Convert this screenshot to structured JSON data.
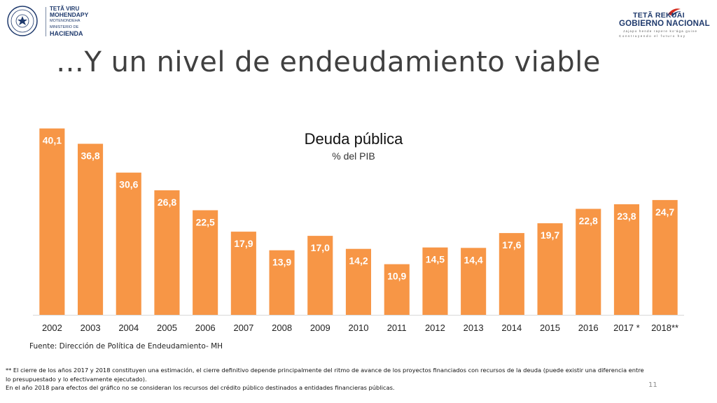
{
  "header": {
    "left_logo": {
      "line1": "TETÃ VIRU",
      "line2": "MOHENDAPY",
      "line3": "MOTENONDEHA",
      "line4": "MINISTERIO DE",
      "line5": "HACIENDA"
    },
    "right_logo": {
      "line1": "TETÃ REKUÁI",
      "line2": "GOBIERNO NACIONAL",
      "line3": "Jajapo hende rapere ko'ága guive",
      "line4": "Construyendo el futuro hoy"
    }
  },
  "slide": {
    "title": "…Y un nivel de endeudamiento viable",
    "source": "Fuente: Dirección de Política de Endeudamiento- MH",
    "footnote_line1": "** El cierre de los años 2017 y 2018 constituyen una estimación, el cierre definitivo depende principalmente del ritmo de avance de los proyectos financiados con recursos de la deuda (puede existir una diferencia entre",
    "footnote_line2": "lo presupuestado y lo efectivamente ejecutado).",
    "footnote_line3": "En el año 2018 para efectos del gráfico no se consideran los recursos del crédito público destinados a entidades financieras públicas.",
    "page_number": "11"
  },
  "colors": {
    "bar": "#f79646",
    "data_label": "#ffffff",
    "axis": "#d9d9d9",
    "tick_label": "#222222"
  },
  "chart_data": {
    "type": "bar",
    "title": "Deuda pública",
    "subtitle": "% del PIB",
    "xlabel": "",
    "ylabel": "",
    "ylim": [
      0,
      42
    ],
    "grid": false,
    "legend": "none",
    "categories": [
      "2002",
      "2003",
      "2004",
      "2005",
      "2006",
      "2007",
      "2008",
      "2009",
      "2010",
      "2011",
      "2012",
      "2013",
      "2014",
      "2015",
      "2016",
      "2017 *",
      "2018**"
    ],
    "values": [
      40.1,
      36.8,
      30.6,
      26.8,
      22.5,
      17.9,
      13.9,
      17.0,
      14.2,
      10.9,
      14.5,
      14.4,
      17.6,
      19.7,
      22.8,
      23.8,
      24.7
    ],
    "value_labels": [
      "40,1",
      "36,8",
      "30,6",
      "26,8",
      "22,5",
      "17,9",
      "13,9",
      "17,0",
      "14,2",
      "10,9",
      "14,5",
      "14,4",
      "17,6",
      "19,7",
      "22,8",
      "23,8",
      "24,7"
    ]
  }
}
